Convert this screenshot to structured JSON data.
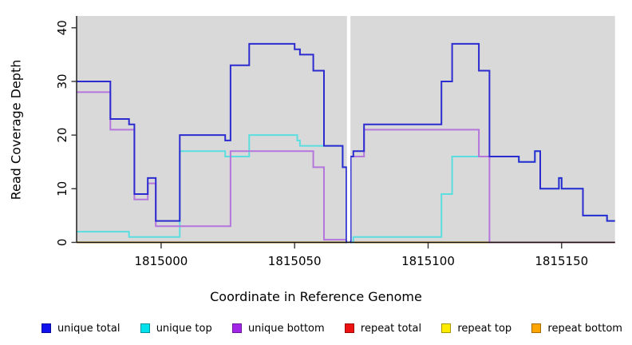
{
  "chart_data": {
    "type": "step-line",
    "title": "",
    "xlabel": "Coordinate in Reference Genome",
    "ylabel": "Read Coverage Depth",
    "x_axis": {
      "ticks": [
        1815000,
        1815050,
        1815100,
        1815150
      ],
      "range": [
        1814968.5,
        1815170
      ]
    },
    "y_axis": {
      "ticks": [
        0,
        10,
        20,
        30,
        40
      ],
      "range": [
        0,
        42.2
      ]
    },
    "plot_background": "#d9d9d9",
    "gap_region": {
      "x_start": 1815069.6,
      "x_end": 1815070.9,
      "color": "#ffffff"
    },
    "legend_position": "bottom",
    "grid": false,
    "series": [
      {
        "id": "unique-total",
        "label": "unique total",
        "line_color": "#2b2bd0",
        "legend_color": "#1111ee",
        "segments": [
          [
            [
              1814968.5,
              1814981,
              30
            ],
            [
              1814981,
              1814988,
              23
            ],
            [
              1814988,
              1814990,
              22
            ],
            [
              1814990,
              1814995,
              9
            ],
            [
              1814995,
              1814998,
              12
            ],
            [
              1814998,
              1815007,
              4
            ],
            [
              1815007,
              1815024,
              20
            ],
            [
              1815024,
              1815026,
              19
            ],
            [
              1815026,
              1815033,
              33
            ],
            [
              1815033,
              1815050,
              37
            ],
            [
              1815050,
              1815052,
              36
            ],
            [
              1815052,
              1815057,
              35
            ],
            [
              1815057,
              1815061,
              32
            ],
            [
              1815061,
              1815068,
              18
            ],
            [
              1815068,
              1815069.4,
              14
            ],
            [
              1815069.4,
              1815069.6,
              0
            ]
          ],
          [
            [
              1815070.9,
              1815071,
              0
            ],
            [
              1815071,
              1815072,
              16
            ],
            [
              1815072,
              1815076,
              17
            ],
            [
              1815076,
              1815105,
              22
            ],
            [
              1815105,
              1815109,
              30
            ],
            [
              1815109,
              1815119,
              37
            ],
            [
              1815119,
              1815123,
              32
            ],
            [
              1815123,
              1815134,
              16
            ],
            [
              1815134,
              1815140,
              15
            ],
            [
              1815140,
              1815142,
              17
            ],
            [
              1815142,
              1815149,
              10
            ],
            [
              1815149,
              1815150,
              12
            ],
            [
              1815150,
              1815158,
              10
            ],
            [
              1815158,
              1815167,
              5
            ],
            [
              1815167,
              1815170,
              4
            ]
          ]
        ]
      },
      {
        "id": "unique-top",
        "label": "unique top",
        "line_color": "#5adee0",
        "legend_color": "#00e1ec",
        "segments": [
          [
            [
              1814968.5,
              1814988,
              2
            ],
            [
              1814988,
              1815007,
              1
            ],
            [
              1815007,
              1815024,
              17
            ],
            [
              1815024,
              1815033,
              16
            ],
            [
              1815033,
              1815051,
              20
            ],
            [
              1815051,
              1815052,
              19
            ],
            [
              1815052,
              1815068,
              18
            ],
            [
              1815068,
              1815069.4,
              14
            ],
            [
              1815069.4,
              1815069.6,
              0
            ]
          ],
          [
            [
              1815071,
              1815072,
              0
            ],
            [
              1815072,
              1815105,
              1
            ],
            [
              1815105,
              1815109,
              9
            ],
            [
              1815109,
              1815134,
              16
            ],
            [
              1815134,
              1815140,
              15
            ],
            [
              1815140,
              1815142,
              17
            ],
            [
              1815142,
              1815149,
              10
            ],
            [
              1815149,
              1815150,
              12
            ],
            [
              1815150,
              1815158,
              10
            ],
            [
              1815158,
              1815167,
              5
            ],
            [
              1815167,
              1815170,
              4
            ]
          ]
        ]
      },
      {
        "id": "unique-bottom",
        "label": "unique bottom",
        "line_color": "#b476dc",
        "legend_color": "#a226e8",
        "segments": [
          [
            [
              1814968.5,
              1814981,
              28
            ],
            [
              1814981,
              1814990,
              21
            ],
            [
              1814990,
              1814995,
              8
            ],
            [
              1814995,
              1814998,
              11
            ],
            [
              1814998,
              1815026,
              3
            ],
            [
              1815026,
              1815057,
              17
            ],
            [
              1815057,
              1815061,
              14
            ],
            [
              1815061,
              1815069.6,
              0.5
            ]
          ],
          [
            [
              1815070.9,
              1815071,
              0.5
            ],
            [
              1815071,
              1815076,
              16
            ],
            [
              1815076,
              1815119,
              21
            ],
            [
              1815119,
              1815123,
              16
            ],
            [
              1815123,
              1815170,
              0
            ]
          ]
        ]
      },
      {
        "id": "repeat-total",
        "label": "repeat total",
        "line_color": "#db7093",
        "legend_color": "#ee1111",
        "segments": [
          [
            [
              1815123,
              1815170,
              0
            ]
          ]
        ]
      },
      {
        "id": "repeat-top",
        "label": "repeat top",
        "line_color": "#ffeb00",
        "legend_color": "#ffeb00",
        "segments": [
          [
            [
              1814968.5,
              1815069.6,
              0
            ]
          ],
          [
            [
              1815070.9,
              1815170,
              0
            ]
          ]
        ]
      },
      {
        "id": "repeat-bottom",
        "label": "repeat bottom",
        "line_color": "#ffa500",
        "legend_color": "#ffa500",
        "segments": [
          [
            [
              1814968.5,
              1815069.6,
              0
            ]
          ],
          [
            [
              1815070.9,
              1815170,
              0
            ]
          ]
        ]
      }
    ],
    "draw_order": [
      "repeat-top",
      "repeat-bottom",
      "unique-top",
      "unique-bottom",
      "repeat-total",
      "unique-total"
    ]
  },
  "x_axis_label": "Coordinate in Reference Genome",
  "y_axis_label": "Read Coverage Depth",
  "legend": [
    {
      "label": "unique total"
    },
    {
      "label": "unique top"
    },
    {
      "label": "unique bottom"
    },
    {
      "label": "repeat total"
    },
    {
      "label": "repeat top"
    },
    {
      "label": "repeat bottom"
    }
  ]
}
